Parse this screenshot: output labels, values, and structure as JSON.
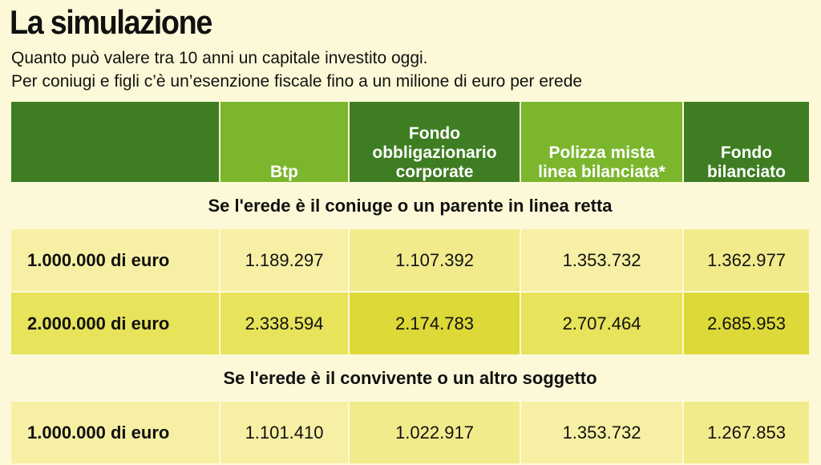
{
  "header": {
    "title": "La simulazione",
    "subtitle_line1": "Quanto può valere tra 10 anni un capitale investito oggi.",
    "subtitle_line2": "Per coniugi e figli c’è un’esenzione fiscale fino a un milione di euro per erede"
  },
  "colors": {
    "header_dark": "#3e7d22",
    "header_light": "#7bb62d",
    "row_pale": "#f7f0a4",
    "row_strong": "#e7e35a",
    "background": "#fdf9d8"
  },
  "chart_data": {
    "type": "table",
    "columns": [
      "",
      "Btp",
      "Fondo obbligazionario corporate",
      "Polizza mista linea bilanciata*",
      "Fondo bilanciato"
    ],
    "column_lines": [
      [],
      [
        "Btp"
      ],
      [
        "Fondo",
        "obbligazionario",
        "corporate"
      ],
      [
        "Polizza mista",
        "linea bilanciata*"
      ],
      [
        "Fondo",
        "bilanciato"
      ]
    ],
    "sections": [
      {
        "title": "Se l'erede è il coniuge o un parente in linea retta",
        "rows": [
          {
            "label": "1.000.000 di euro",
            "values": [
              "1.189.297",
              "1.107.392",
              "1.353.732",
              "1.362.977"
            ]
          },
          {
            "label": "2.000.000 di euro",
            "values": [
              "2.338.594",
              "2.174.783",
              "2.707.464",
              "2.685.953"
            ]
          }
        ]
      },
      {
        "title": "Se l'erede è il convivente o un altro soggetto",
        "rows": [
          {
            "label": "1.000.000 di euro",
            "values": [
              "1.101.410",
              "1.022.917",
              "1.353.732",
              "1.267.853"
            ]
          }
        ]
      }
    ]
  }
}
